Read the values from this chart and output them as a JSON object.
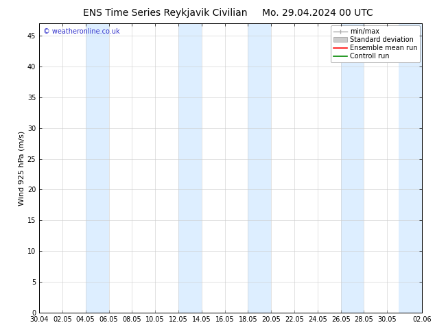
{
  "title_left": "ENS Time Series Reykjavik Civilian",
  "title_right": "Mo. 29.04.2024 00 UTC",
  "ylabel": "Wind 925 hPa (m/s)",
  "watermark": "© weatheronline.co.uk",
  "ylim": [
    0,
    47
  ],
  "yticks": [
    0,
    5,
    10,
    15,
    20,
    25,
    30,
    35,
    40,
    45
  ],
  "xtick_labels": [
    "30.04",
    "02.05",
    "04.05",
    "06.05",
    "08.05",
    "10.05",
    "12.05",
    "14.05",
    "16.05",
    "18.05",
    "20.05",
    "22.05",
    "24.05",
    "26.05",
    "28.05",
    "30.05",
    "02.06"
  ],
  "xtick_positions": [
    0,
    2,
    4,
    6,
    8,
    10,
    12,
    14,
    16,
    18,
    20,
    22,
    24,
    26,
    28,
    30,
    33
  ],
  "num_days": 33,
  "band_color": "#ddeeff",
  "band_edge_color": "#aaccee",
  "bg_color": "#ffffff",
  "band_ranges": [
    [
      4,
      6
    ],
    [
      12,
      14
    ],
    [
      18,
      20
    ],
    [
      26,
      28
    ],
    [
      31,
      33
    ]
  ],
  "watermark_color": "#3333cc",
  "title_fontsize": 10,
  "tick_fontsize": 7,
  "ylabel_fontsize": 8,
  "legend_fontsize": 7
}
